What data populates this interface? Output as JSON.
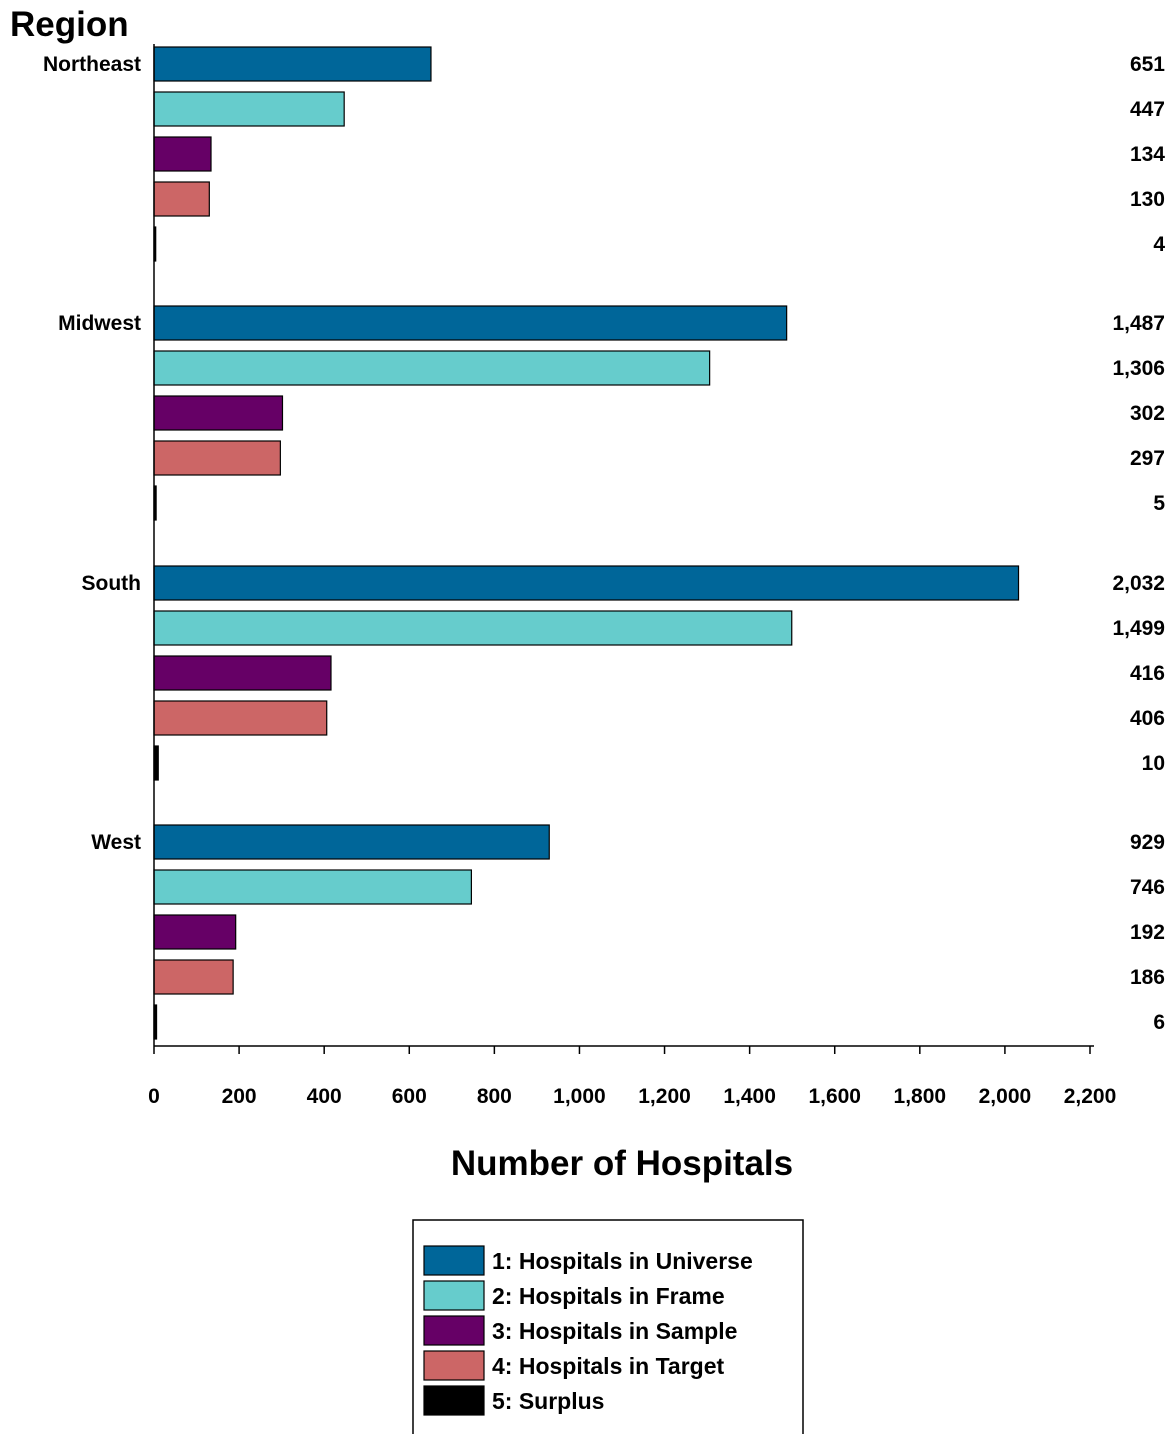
{
  "chart_data": {
    "type": "bar",
    "orientation": "horizontal",
    "ylabel": "Region",
    "xlabel": "Number of Hospitals",
    "xlim": [
      0,
      2200
    ],
    "x_ticks": [
      0,
      200,
      400,
      600,
      800,
      1000,
      1200,
      1400,
      1600,
      1800,
      2000,
      2200
    ],
    "x_tick_labels": [
      "0",
      "200",
      "400",
      "600",
      "800",
      "1,000",
      "1,200",
      "1,400",
      "1,600",
      "1,800",
      "2,000",
      "2,200"
    ],
    "categories": [
      "Northeast",
      "Midwest",
      "South",
      "West"
    ],
    "series": [
      {
        "name": "1: Hospitals in Universe",
        "color": "#006699",
        "values": [
          651,
          1487,
          2032,
          929
        ],
        "labels": [
          "651",
          "1,487",
          "2,032",
          "929"
        ]
      },
      {
        "name": "2: Hospitals in Frame",
        "color": "#66CCCC",
        "values": [
          447,
          1306,
          1499,
          746
        ],
        "labels": [
          "447",
          "1,306",
          "1,499",
          "746"
        ]
      },
      {
        "name": "3: Hospitals in Sample",
        "color": "#660066",
        "values": [
          134,
          302,
          416,
          192
        ],
        "labels": [
          "134",
          "302",
          "416",
          "192"
        ]
      },
      {
        "name": "4: Hospitals in Target",
        "color": "#CC6666",
        "values": [
          130,
          297,
          406,
          186
        ],
        "labels": [
          "130",
          "297",
          "406",
          "186"
        ]
      },
      {
        "name": "5: Surplus",
        "color": "#000000",
        "values": [
          4,
          5,
          10,
          6
        ],
        "labels": [
          "4",
          "5",
          "10",
          "6"
        ]
      }
    ],
    "legend_position": "bottom-center",
    "grid": false
  }
}
